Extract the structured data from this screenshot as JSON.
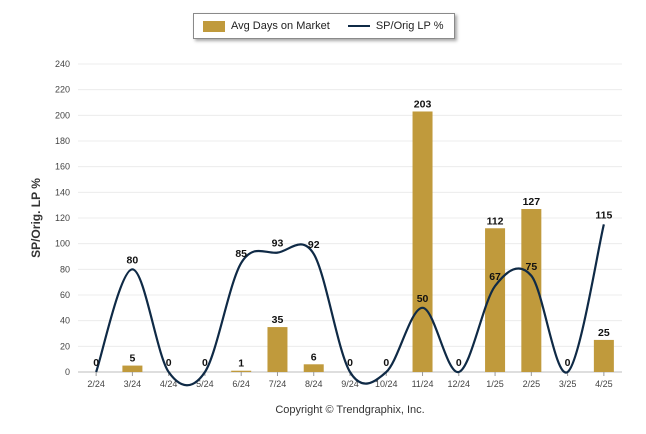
{
  "chart_data": {
    "type": "bar+line",
    "categories": [
      "2/24",
      "3/24",
      "4/24",
      "5/24",
      "6/24",
      "7/24",
      "8/24",
      "9/24",
      "10/24",
      "11/24",
      "12/24",
      "1/25",
      "2/25",
      "3/25",
      "4/25"
    ],
    "series": [
      {
        "name": "Avg Days on Market",
        "kind": "bar",
        "color": "#c09a3c",
        "values": [
          0,
          5,
          0,
          0,
          1,
          35,
          6,
          0,
          0,
          203,
          0,
          112,
          127,
          0,
          25
        ]
      },
      {
        "name": "SP/Orig LP %",
        "kind": "line",
        "color": "#0f2a46",
        "values": [
          0,
          80,
          0,
          0,
          85,
          93,
          92,
          0,
          0,
          50,
          0,
          67,
          75,
          0,
          115
        ]
      }
    ],
    "ylabel": "SP/Orig. LP %",
    "ylim": [
      0,
      240
    ],
    "yticks": [
      0,
      20,
      40,
      60,
      80,
      100,
      120,
      140,
      160,
      180,
      200,
      220,
      240
    ],
    "grid": true,
    "legend_position": "top"
  },
  "legend": {
    "bar_label": "Avg Days on Market",
    "line_label": "SP/Orig LP %",
    "bar_color": "#c09a3c",
    "line_color": "#0f2a46"
  },
  "footer": {
    "copyright": "Copyright © Trendgraphix, Inc."
  }
}
